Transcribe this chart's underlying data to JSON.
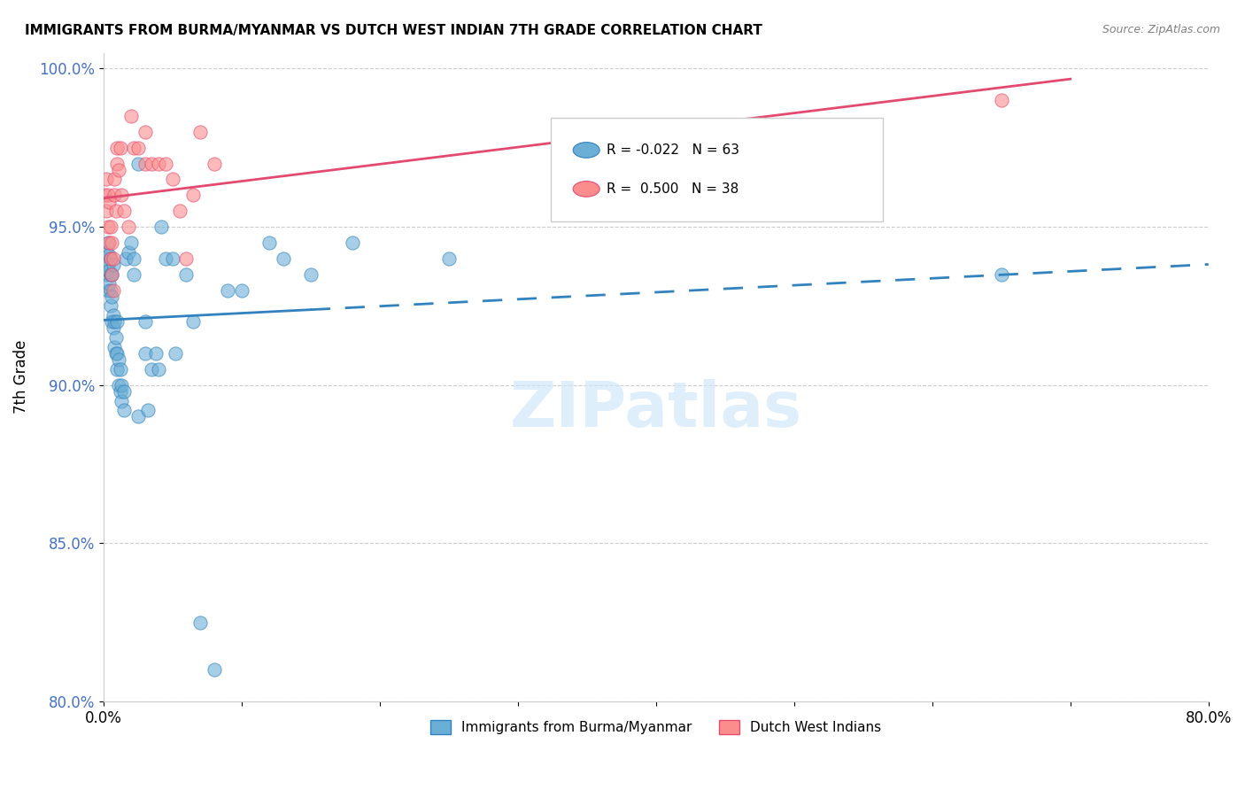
{
  "title": "IMMIGRANTS FROM BURMA/MYANMAR VS DUTCH WEST INDIAN 7TH GRADE CORRELATION CHART",
  "source": "Source: ZipAtlas.com",
  "xlabel": "",
  "ylabel": "7th Grade",
  "legend_label_blue": "Immigrants from Burma/Myanmar",
  "legend_label_pink": "Dutch West Indians",
  "R_blue": -0.022,
  "N_blue": 63,
  "R_pink": 0.5,
  "N_pink": 38,
  "xlim": [
    0.0,
    0.8
  ],
  "ylim": [
    0.8,
    1.005
  ],
  "yticks": [
    0.8,
    0.85,
    0.9,
    0.95,
    1.0
  ],
  "ytick_labels": [
    "80.0%",
    "85.0%",
    "90.0%",
    "95.0%",
    "100.0%"
  ],
  "xticks": [
    0.0,
    0.1,
    0.2,
    0.3,
    0.4,
    0.5,
    0.6,
    0.7,
    0.8
  ],
  "xtick_labels": [
    "0.0%",
    "",
    "",
    "",
    "",
    "",
    "",
    "",
    "80.0%"
  ],
  "blue_color": "#6baed6",
  "pink_color": "#fc8d8d",
  "blue_line_color": "#3182bd",
  "pink_line_color": "#e34a6f",
  "watermark": "ZIPatlas",
  "blue_scatter_x": [
    0.001,
    0.002,
    0.002,
    0.003,
    0.003,
    0.003,
    0.004,
    0.004,
    0.004,
    0.005,
    0.005,
    0.005,
    0.005,
    0.006,
    0.006,
    0.006,
    0.007,
    0.007,
    0.007,
    0.008,
    0.008,
    0.009,
    0.009,
    0.01,
    0.01,
    0.01,
    0.011,
    0.011,
    0.012,
    0.012,
    0.013,
    0.013,
    0.015,
    0.015,
    0.016,
    0.018,
    0.02,
    0.022,
    0.022,
    0.025,
    0.025,
    0.03,
    0.03,
    0.032,
    0.035,
    0.038,
    0.04,
    0.042,
    0.045,
    0.05,
    0.052,
    0.06,
    0.065,
    0.07,
    0.08,
    0.09,
    0.1,
    0.12,
    0.13,
    0.15,
    0.18,
    0.25,
    0.65
  ],
  "blue_scatter_y": [
    0.94,
    0.935,
    0.942,
    0.93,
    0.938,
    0.945,
    0.932,
    0.936,
    0.941,
    0.925,
    0.93,
    0.935,
    0.94,
    0.92,
    0.928,
    0.935,
    0.918,
    0.922,
    0.938,
    0.912,
    0.92,
    0.91,
    0.915,
    0.905,
    0.91,
    0.92,
    0.9,
    0.908,
    0.898,
    0.905,
    0.895,
    0.9,
    0.892,
    0.898,
    0.94,
    0.942,
    0.945,
    0.935,
    0.94,
    0.97,
    0.89,
    0.91,
    0.92,
    0.892,
    0.905,
    0.91,
    0.905,
    0.95,
    0.94,
    0.94,
    0.91,
    0.935,
    0.92,
    0.825,
    0.81,
    0.93,
    0.93,
    0.945,
    0.94,
    0.935,
    0.945,
    0.94,
    0.935
  ],
  "pink_scatter_x": [
    0.001,
    0.002,
    0.002,
    0.003,
    0.003,
    0.004,
    0.004,
    0.005,
    0.005,
    0.006,
    0.006,
    0.007,
    0.007,
    0.008,
    0.008,
    0.009,
    0.01,
    0.01,
    0.011,
    0.012,
    0.013,
    0.015,
    0.018,
    0.02,
    0.022,
    0.025,
    0.03,
    0.03,
    0.035,
    0.04,
    0.045,
    0.05,
    0.055,
    0.06,
    0.065,
    0.07,
    0.08,
    0.65
  ],
  "pink_scatter_y": [
    0.96,
    0.955,
    0.965,
    0.95,
    0.96,
    0.945,
    0.958,
    0.94,
    0.95,
    0.935,
    0.945,
    0.93,
    0.94,
    0.96,
    0.965,
    0.955,
    0.975,
    0.97,
    0.968,
    0.975,
    0.96,
    0.955,
    0.95,
    0.985,
    0.975,
    0.975,
    0.97,
    0.98,
    0.97,
    0.97,
    0.97,
    0.965,
    0.955,
    0.94,
    0.96,
    0.98,
    0.97,
    0.99
  ]
}
